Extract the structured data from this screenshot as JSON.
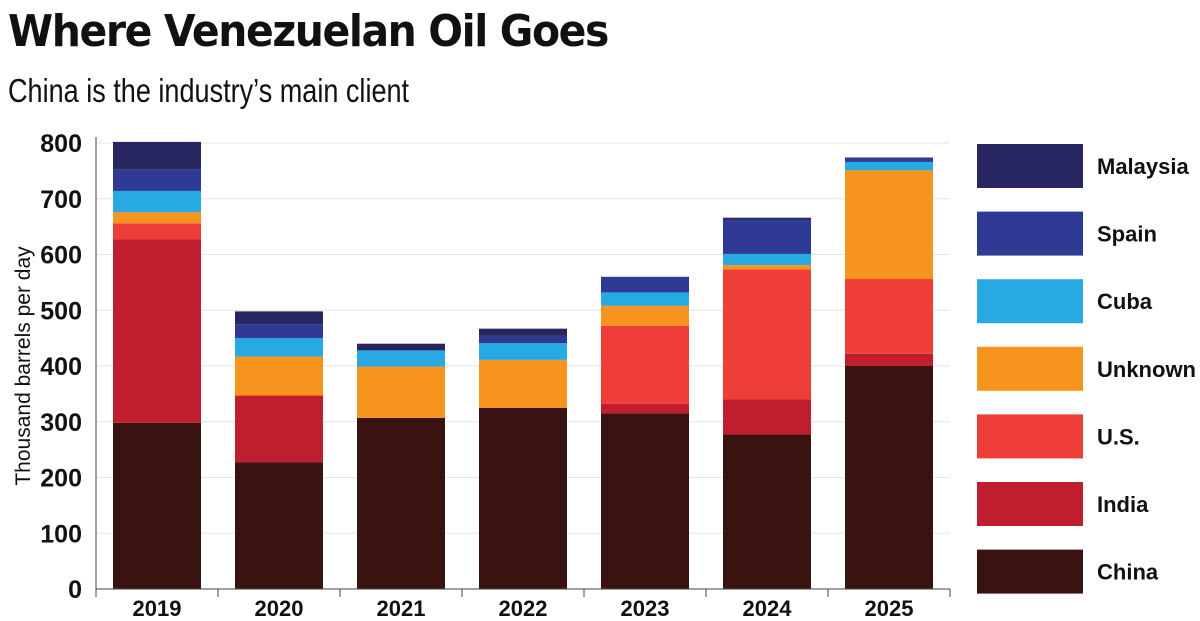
{
  "header": {
    "title": "Where Venezuelan Oil Goes",
    "subtitle": "China is the industry’s main client"
  },
  "chart_data": {
    "type": "bar",
    "stacked": true,
    "title": "Where Venezuelan Oil Goes",
    "subtitle": "China is the industry’s main client",
    "xlabel": "",
    "ylabel": "Thousand barrels per day",
    "ylim": [
      0,
      800
    ],
    "yticks": [
      0,
      100,
      200,
      300,
      400,
      500,
      600,
      700,
      800
    ],
    "grid": true,
    "legend_position": "right",
    "categories": [
      "2019",
      "2020",
      "2021",
      "2022",
      "2023",
      "2024",
      "2025"
    ],
    "series": [
      {
        "name": "China",
        "color": "#3a1311",
        "values": [
          298,
          227,
          307,
          325,
          315,
          277,
          400
        ]
      },
      {
        "name": "India",
        "color": "#be1e2d",
        "values": [
          329,
          120,
          0,
          0,
          17,
          63,
          22
        ]
      },
      {
        "name": "U.S.",
        "color": "#ee3e37",
        "values": [
          29,
          0,
          0,
          0,
          140,
          233,
          134
        ]
      },
      {
        "name": "Unknown",
        "color": "#f7941d",
        "values": [
          20,
          70,
          92,
          86,
          36,
          8,
          195
        ]
      },
      {
        "name": "Cuba",
        "color": "#27aae1",
        "values": [
          38,
          33,
          29,
          30,
          24,
          20,
          15
        ]
      },
      {
        "name": "Spain",
        "color": "#2e3a94",
        "values": [
          38,
          25,
          0,
          13,
          28,
          61,
          8
        ]
      },
      {
        "name": "Malaysia",
        "color": "#282661",
        "values": [
          50,
          23,
          12,
          13,
          0,
          4,
          0
        ]
      }
    ]
  }
}
